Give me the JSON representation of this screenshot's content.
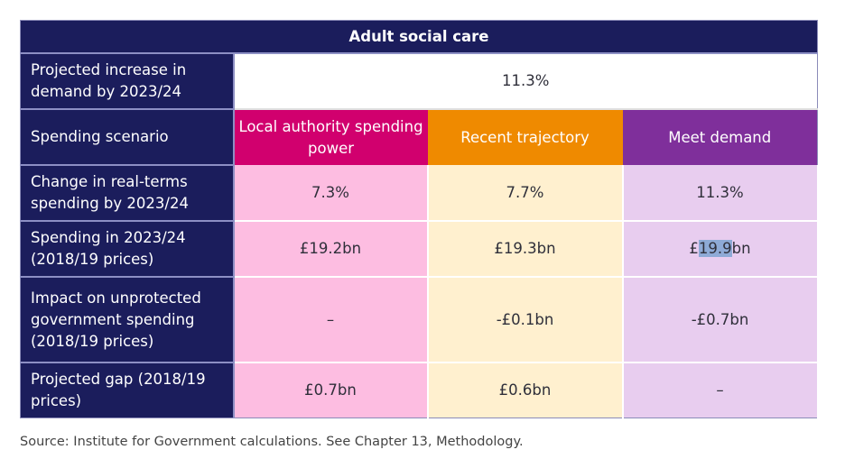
{
  "table": {
    "title": "Adult social care",
    "demand_row": {
      "label": "Projected increase in demand by 2023/24",
      "value": "11.3%"
    },
    "scenario_row": {
      "label": "Spending scenario",
      "scenarios": [
        "Local authority spending power",
        "Recent trajectory",
        "Meet demand"
      ]
    },
    "rows": [
      {
        "label": "Change in real-terms spending by 2023/24",
        "values": [
          "7.3%",
          "7.7%",
          "11.3%"
        ]
      },
      {
        "label": "Spending in 2023/24 (2018/19 prices)",
        "values": [
          "£19.2bn",
          "£19.3bn",
          "£19.9bn"
        ],
        "highlight": {
          "prefix": "£",
          "selected": "19.9",
          "suffix": "bn"
        }
      },
      {
        "label": "Impact on unprotected government spending (2018/19 prices)",
        "values": [
          "–",
          "-£0.1bn",
          "-£0.7bn"
        ]
      },
      {
        "label": "Projected gap (2018/19 prices)",
        "values": [
          "£0.7bn",
          "£0.6bn",
          "–"
        ]
      }
    ]
  },
  "colors": {
    "navy": "#1b1d5c",
    "local_authority": "#d1006e",
    "recent_trajectory": "#ef8a00",
    "meet_demand": "#7f2f9b",
    "local_authority_light": "#fdbde1",
    "recent_trajectory_light": "#fff0cf",
    "meet_demand_light": "#e8cdef"
  },
  "source": "Source: Institute for Government calculations. See Chapter 13, Methodology."
}
